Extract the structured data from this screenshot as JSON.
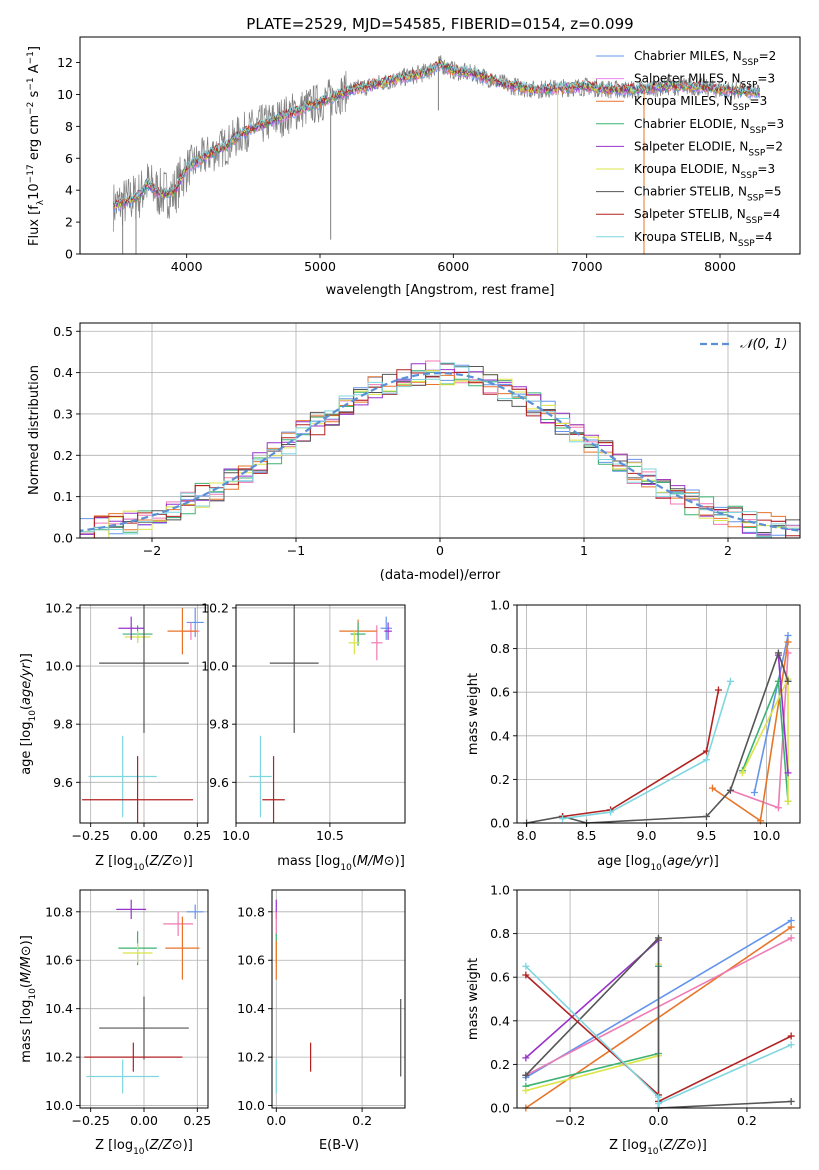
{
  "title": "PLATE=2529, MJD=54585, FIBERID=0154, z=0.099",
  "colors": {
    "Chabrier MILES": "#6495ed",
    "Salpeter MILES": "#ee82ee",
    "Kroupa MILES": "#e8742a",
    "Chabrier ELODIE": "#3cb371",
    "Salpeter ELODIE": "#9932cc",
    "Kroupa ELODIE": "#dbe448",
    "Chabrier STELIB": "#555555",
    "Salpeter STELIB": "#b22222",
    "Kroupa STELIB": "#7fd6e0",
    "pink": "#f07ab4",
    "data_gray": "#7f7f7f"
  },
  "chart_data": [
    {
      "type": "line",
      "title": "PLATE=2529, MJD=54585, FIBERID=0154, z=0.099",
      "xlabel": "wavelength [Angstrom, rest frame]",
      "ylabel_parts": [
        "Flux [f",
        "λ",
        "10",
        "−17",
        " erg cm",
        "−2",
        " s",
        "−1",
        " A",
        "−1",
        "]"
      ],
      "xlim": [
        3200,
        8600
      ],
      "ylim": [
        0,
        13.6
      ],
      "xticks": [
        4000,
        5000,
        6000,
        7000,
        8000
      ],
      "yticks": [
        0,
        2,
        4,
        6,
        8,
        10,
        12
      ],
      "legend_position": "right",
      "legend": [
        {
          "base": "Chabrier MILES, N",
          "sub": "SSP",
          "tail": "=2",
          "color": "#6495ed"
        },
        {
          "base": "Salpeter MILES, N",
          "sub": "SSP",
          "tail": "=3",
          "color": "#ee82ee"
        },
        {
          "base": "Kroupa MILES, N",
          "sub": "SSP",
          "tail": "=3",
          "color": "#e8742a"
        },
        {
          "base": "Chabrier ELODIE, N",
          "sub": "SSP",
          "tail": "=3",
          "color": "#3cb371"
        },
        {
          "base": "Salpeter ELODIE, N",
          "sub": "SSP",
          "tail": "=2",
          "color": "#9932cc"
        },
        {
          "base": "Kroupa ELODIE, N",
          "sub": "SSP",
          "tail": "=3",
          "color": "#dbe448"
        },
        {
          "base": "Chabrier STELIB, N",
          "sub": "SSP",
          "tail": "=5",
          "color": "#555555"
        },
        {
          "base": "Salpeter STELIB, N",
          "sub": "SSP",
          "tail": "=4",
          "color": "#b22222"
        },
        {
          "base": "Kroupa STELIB, N",
          "sub": "SSP",
          "tail": "=4",
          "color": "#7fd6e0"
        }
      ],
      "continuum": {
        "x": [
          3450,
          3550,
          3650,
          3700,
          3800,
          3900,
          3950,
          4000,
          4100,
          4200,
          4300,
          4400,
          4500,
          4600,
          4800,
          5000,
          5200,
          5400,
          5600,
          5800,
          5900,
          6000,
          6200,
          6400,
          6600,
          6800,
          7000,
          7200,
          7400,
          7600,
          7800,
          8000,
          8200,
          8300
        ],
        "y": [
          3.0,
          3.3,
          3.7,
          4.4,
          3.8,
          3.8,
          4.6,
          5.4,
          5.9,
          6.4,
          6.8,
          7.5,
          7.9,
          8.2,
          8.9,
          9.5,
          10.2,
          10.6,
          11.0,
          11.4,
          11.9,
          11.5,
          11.2,
          10.6,
          10.3,
          10.4,
          10.5,
          10.3,
          10.3,
          10.5,
          10.5,
          10.3,
          10.2,
          10.1
        ]
      },
      "spikes": [
        {
          "x": 5080,
          "y": 0.9
        },
        {
          "x": 5888,
          "y": 9.0
        },
        {
          "x": 6782,
          "y": 0
        },
        {
          "x": 7430,
          "y": 0
        },
        {
          "x": 3620,
          "y": 0
        },
        {
          "x": 3520,
          "y": 0
        }
      ]
    },
    {
      "type": "step",
      "xlabel": "(data-model)/error",
      "ylabel": "Normed distribution",
      "xlim": [
        -2.5,
        2.5
      ],
      "ylim": [
        0,
        0.52
      ],
      "xticks": [
        -2,
        -1,
        0,
        1,
        2
      ],
      "yticks": [
        0.0,
        0.1,
        0.2,
        0.3,
        0.4,
        0.5
      ],
      "legend": "𝒩(0, 1)",
      "bin_width": 0.1
    },
    {
      "type": "scatter",
      "xlabel": "Z [log10(Z/Z⊙)]",
      "ylabel": "age  [log10(age/yr)]",
      "xlim": [
        -0.3,
        0.3
      ],
      "ylim": [
        9.46,
        10.21
      ],
      "xticks": [
        -0.25,
        0.0,
        0.25
      ],
      "yticks": [
        9.6,
        9.8,
        10.0,
        10.2
      ],
      "points": [
        {
          "color": "#6495ed",
          "x": 0.24,
          "xerr": 0.04,
          "y": 10.15,
          "yerr": 0.05
        },
        {
          "color": "#f07ab4",
          "x": 0.22,
          "xerr": 0.04,
          "y": 10.12,
          "yerr": 0.03
        },
        {
          "color": "#e8742a",
          "x": 0.18,
          "xerr": 0.07,
          "y": 10.12,
          "yerr": 0.08
        },
        {
          "color": "#3cb371",
          "x": -0.03,
          "xerr": 0.07,
          "y": 10.11,
          "yerr": 0.03
        },
        {
          "color": "#dbe448",
          "x": -0.03,
          "xerr": 0.06,
          "y": 10.1,
          "yerr": 0.02
        },
        {
          "color": "#9932cc",
          "x": -0.06,
          "xerr": 0.06,
          "y": 10.13,
          "yerr": 0.04
        },
        {
          "color": "#555555",
          "x": 0.0,
          "xerr": 0.21,
          "y": 10.01,
          "yerr": 0.24
        },
        {
          "color": "#7fd6e0",
          "x": -0.1,
          "xerr": 0.16,
          "y": 9.62,
          "yerr": 0.14
        },
        {
          "color": "#b22222",
          "x": -0.03,
          "xerr": 0.26,
          "y": 9.54,
          "yerr": 0.15
        }
      ]
    },
    {
      "type": "scatter",
      "xlabel": "mass [log10(M/M⊙)]",
      "xlim": [
        10.0,
        10.9
      ],
      "ylim": [
        9.46,
        10.21
      ],
      "xticks": [
        10.0,
        10.5
      ],
      "yticks": [
        9.6,
        9.8,
        10.0,
        10.2
      ],
      "points": [
        {
          "color": "#6495ed",
          "x": 10.8,
          "xerr": 0.03,
          "y": 10.13,
          "yerr": 0.04
        },
        {
          "color": "#9932cc",
          "x": 10.81,
          "xerr": 0.02,
          "y": 10.12,
          "yerr": 0.03
        },
        {
          "color": "#f07ab4",
          "x": 10.75,
          "xerr": 0.03,
          "y": 10.08,
          "yerr": 0.06
        },
        {
          "color": "#e8742a",
          "x": 10.65,
          "xerr": 0.1,
          "y": 10.12,
          "yerr": 0.04
        },
        {
          "color": "#3cb371",
          "x": 10.65,
          "xerr": 0.04,
          "y": 10.11,
          "yerr": 0.04
        },
        {
          "color": "#dbe448",
          "x": 10.63,
          "xerr": 0.03,
          "y": 10.08,
          "yerr": 0.04
        },
        {
          "color": "#555555",
          "x": 10.31,
          "xerr": 0.13,
          "y": 10.01,
          "yerr": 0.24
        },
        {
          "color": "#7fd6e0",
          "x": 10.13,
          "xerr": 0.06,
          "y": 9.62,
          "yerr": 0.14
        },
        {
          "color": "#b22222",
          "x": 10.2,
          "xerr": 0.06,
          "y": 9.54,
          "yerr": 0.15
        }
      ]
    },
    {
      "type": "line",
      "xlabel": "age  [log10(age/yr)]",
      "ylabel": "mass weight",
      "xlim": [
        7.92,
        10.28
      ],
      "ylim": [
        0,
        1.0
      ],
      "xticks": [
        8.0,
        8.5,
        9.0,
        9.5,
        10.0
      ],
      "yticks": [
        0.0,
        0.2,
        0.4,
        0.6,
        0.8,
        1.0
      ],
      "series": [
        {
          "color": "#6495ed",
          "x": [
            9.9,
            10.18
          ],
          "y": [
            0.14,
            0.86
          ]
        },
        {
          "color": "#f07ab4",
          "x": [
            9.7,
            10.1,
            10.18
          ],
          "y": [
            0.15,
            0.07,
            0.78
          ]
        },
        {
          "color": "#e8742a",
          "x": [
            9.55,
            9.95,
            10.18
          ],
          "y": [
            0.16,
            0.01,
            0.83
          ]
        },
        {
          "color": "#3cb371",
          "x": [
            9.8,
            10.1,
            10.18
          ],
          "y": [
            0.24,
            0.65,
            0.1
          ]
        },
        {
          "color": "#dbe448",
          "x": [
            9.8,
            10.18,
            10.18
          ],
          "y": [
            0.23,
            0.66,
            0.1
          ]
        },
        {
          "color": "#9932cc",
          "x": [
            10.1,
            10.18
          ],
          "y": [
            0.77,
            0.23
          ]
        },
        {
          "color": "#555555",
          "x": [
            8.0,
            8.3,
            8.5,
            9.5,
            9.7,
            10.1,
            10.18
          ],
          "y": [
            0.0,
            0.03,
            0.0,
            0.03,
            0.15,
            0.78,
            0.65
          ]
        },
        {
          "color": "#b22222",
          "x": [
            8.3,
            8.7,
            9.5,
            9.6
          ],
          "y": [
            0.03,
            0.06,
            0.33,
            0.61
          ]
        },
        {
          "color": "#7fd6e0",
          "x": [
            8.3,
            8.7,
            9.5,
            9.7
          ],
          "y": [
            0.02,
            0.05,
            0.29,
            0.65
          ]
        }
      ]
    },
    {
      "type": "scatter",
      "xlabel": "Z [log10(Z/Z⊙)]",
      "ylabel": "mass [log10(M/M⊙)]",
      "xlim": [
        -0.3,
        0.3
      ],
      "ylim": [
        9.99,
        10.89
      ],
      "xticks": [
        -0.25,
        0.0,
        0.25
      ],
      "yticks": [
        10.0,
        10.2,
        10.4,
        10.6,
        10.8
      ],
      "points": [
        {
          "color": "#9932cc",
          "x": -0.06,
          "xerr": 0.07,
          "y": 10.81,
          "yerr": 0.04
        },
        {
          "color": "#6495ed",
          "x": 0.24,
          "xerr": 0.04,
          "y": 10.8,
          "yerr": 0.03
        },
        {
          "color": "#f07ab4",
          "x": 0.16,
          "xerr": 0.07,
          "y": 10.75,
          "yerr": 0.05
        },
        {
          "color": "#e8742a",
          "x": 0.18,
          "xerr": 0.08,
          "y": 10.65,
          "yerr": 0.13
        },
        {
          "color": "#3cb371",
          "x": -0.03,
          "xerr": 0.09,
          "y": 10.65,
          "yerr": 0.07
        },
        {
          "color": "#dbe448",
          "x": -0.03,
          "xerr": 0.07,
          "y": 10.63,
          "yerr": 0.04
        },
        {
          "color": "#555555",
          "x": 0.0,
          "xerr": 0.21,
          "y": 10.32,
          "yerr": 0.13
        },
        {
          "color": "#b22222",
          "x": -0.05,
          "xerr": 0.23,
          "y": 10.2,
          "yerr": 0.06
        },
        {
          "color": "#7fd6e0",
          "x": -0.1,
          "xerr": 0.17,
          "y": 10.12,
          "yerr": 0.07
        }
      ]
    },
    {
      "type": "scatter",
      "xlabel": "E(B-V)",
      "xlim": [
        -0.01,
        0.3
      ],
      "ylim": [
        9.99,
        10.89
      ],
      "xticks": [
        0.0,
        0.2
      ],
      "yticks": [
        10.0,
        10.2,
        10.4,
        10.6,
        10.8
      ],
      "points": [
        {
          "color": "#9932cc",
          "x": 0.0,
          "xerr": 0,
          "y": 10.81,
          "yerr": 0.04
        },
        {
          "color": "#f07ab4",
          "x": 0.0,
          "xerr": 0,
          "y": 10.75,
          "yerr": 0.05
        },
        {
          "color": "#3cb371",
          "x": 0.0,
          "xerr": 0,
          "y": 10.65,
          "yerr": 0.06
        },
        {
          "color": "#dbe448",
          "x": 0.0,
          "xerr": 0,
          "y": 10.63,
          "yerr": 0.05
        },
        {
          "color": "#e8742a",
          "x": 0.0,
          "xerr": 0,
          "y": 10.6,
          "yerr": 0.08
        },
        {
          "color": "#7fd6e0",
          "x": 0.0,
          "xerr": 0,
          "y": 10.12,
          "yerr": 0.07
        },
        {
          "color": "#b22222",
          "x": 0.08,
          "xerr": 0,
          "y": 10.2,
          "yerr": 0.06
        },
        {
          "color": "#555555",
          "x": 0.29,
          "xerr": 0,
          "y": 10.28,
          "yerr": 0.16
        }
      ]
    },
    {
      "type": "line",
      "xlabel": "Z [log10(Z/Z⊙)]",
      "ylabel": "mass weight",
      "xlim": [
        -0.32,
        0.32
      ],
      "ylim": [
        0,
        1.0
      ],
      "xticks": [
        -0.2,
        0.0,
        0.2
      ],
      "yticks": [
        0.0,
        0.2,
        0.4,
        0.6,
        0.8,
        1.0
      ],
      "series": [
        {
          "color": "#6495ed",
          "x": [
            -0.3,
            0.3
          ],
          "y": [
            0.14,
            0.86
          ]
        },
        {
          "color": "#e8742a",
          "x": [
            -0.3,
            0.3
          ],
          "y": [
            0.0,
            0.83
          ]
        },
        {
          "color": "#f07ab4",
          "x": [
            -0.3,
            0.3
          ],
          "y": [
            0.15,
            0.78
          ]
        },
        {
          "color": "#9932cc",
          "x": [
            -0.3,
            0.0
          ],
          "y": [
            0.23,
            0.77
          ]
        },
        {
          "color": "#3cb371",
          "x": [
            -0.3,
            0.0,
            0.0
          ],
          "y": [
            0.1,
            0.25,
            0.65
          ]
        },
        {
          "color": "#dbe448",
          "x": [
            -0.3,
            0.0,
            0.0
          ],
          "y": [
            0.08,
            0.24,
            0.66
          ]
        },
        {
          "color": "#555555",
          "x": [
            -0.3,
            0.0,
            0.0,
            0.3
          ],
          "y": [
            0.15,
            0.78,
            0.0,
            0.03
          ]
        },
        {
          "color": "#b22222",
          "x": [
            -0.3,
            0.0,
            0.0,
            0.3
          ],
          "y": [
            0.61,
            0.06,
            0.03,
            0.33
          ]
        },
        {
          "color": "#7fd6e0",
          "x": [
            -0.3,
            0.0,
            0.0,
            0.3
          ],
          "y": [
            0.65,
            0.05,
            0.02,
            0.29
          ]
        }
      ]
    }
  ]
}
